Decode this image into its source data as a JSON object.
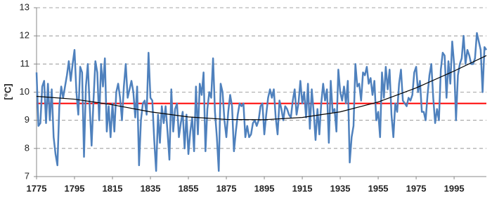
{
  "chart_data": {
    "type": "line",
    "y_label": "[°C]",
    "xlim": [
      1775,
      2012
    ],
    "ylim": [
      7,
      13
    ],
    "xticks": [
      1775,
      1795,
      1815,
      1835,
      1855,
      1875,
      1895,
      1915,
      1935,
      1955,
      1975,
      1995
    ],
    "yticks": [
      7,
      8,
      9,
      10,
      11,
      12,
      13
    ],
    "grid": true,
    "x": [
      1775,
      1776,
      1777,
      1778,
      1779,
      1780,
      1781,
      1782,
      1783,
      1784,
      1785,
      1786,
      1787,
      1788,
      1789,
      1790,
      1791,
      1792,
      1793,
      1794,
      1795,
      1796,
      1797,
      1798,
      1799,
      1800,
      1801,
      1802,
      1803,
      1804,
      1805,
      1806,
      1807,
      1808,
      1809,
      1810,
      1811,
      1812,
      1813,
      1814,
      1815,
      1816,
      1817,
      1818,
      1819,
      1820,
      1821,
      1822,
      1823,
      1824,
      1825,
      1826,
      1827,
      1828,
      1829,
      1830,
      1831,
      1832,
      1833,
      1834,
      1835,
      1836,
      1837,
      1838,
      1839,
      1840,
      1841,
      1842,
      1843,
      1844,
      1845,
      1846,
      1847,
      1848,
      1849,
      1850,
      1851,
      1852,
      1853,
      1854,
      1855,
      1856,
      1857,
      1858,
      1859,
      1860,
      1861,
      1862,
      1863,
      1864,
      1865,
      1866,
      1867,
      1868,
      1869,
      1870,
      1871,
      1872,
      1873,
      1874,
      1875,
      1876,
      1877,
      1878,
      1879,
      1880,
      1881,
      1882,
      1883,
      1884,
      1885,
      1886,
      1887,
      1888,
      1889,
      1890,
      1891,
      1892,
      1893,
      1894,
      1895,
      1896,
      1897,
      1898,
      1899,
      1900,
      1901,
      1902,
      1903,
      1904,
      1905,
      1906,
      1907,
      1908,
      1909,
      1910,
      1911,
      1912,
      1913,
      1914,
      1915,
      1916,
      1917,
      1918,
      1919,
      1920,
      1921,
      1922,
      1923,
      1924,
      1925,
      1926,
      1927,
      1928,
      1929,
      1930,
      1931,
      1932,
      1933,
      1934,
      1935,
      1936,
      1937,
      1938,
      1939,
      1940,
      1941,
      1942,
      1943,
      1944,
      1945,
      1946,
      1947,
      1948,
      1949,
      1950,
      1951,
      1952,
      1953,
      1954,
      1955,
      1956,
      1957,
      1958,
      1959,
      1960,
      1961,
      1962,
      1963,
      1964,
      1965,
      1966,
      1967,
      1968,
      1969,
      1970,
      1971,
      1972,
      1973,
      1974,
      1975,
      1976,
      1977,
      1978,
      1979,
      1980,
      1981,
      1982,
      1983,
      1984,
      1985,
      1986,
      1987,
      1988,
      1989,
      1990,
      1991,
      1992,
      1993,
      1994,
      1995,
      1996,
      1997,
      1998,
      1999,
      2000,
      2001,
      2002,
      2003,
      2004,
      2005,
      2006,
      2007,
      2008,
      2009,
      2010,
      2011,
      2012
    ],
    "series": [
      {
        "color": "#4f81bd",
        "values": [
          10.7,
          8.8,
          8.9,
          10.2,
          10.4,
          8.9,
          10.3,
          9.0,
          10.1,
          8.4,
          7.8,
          7.4,
          9.5,
          10.2,
          9.8,
          10.2,
          10.6,
          11.1,
          10.4,
          11.0,
          11.5,
          10.0,
          9.2,
          10.9,
          10.7,
          7.7,
          10.2,
          11.0,
          9.5,
          8.1,
          9.7,
          11.1,
          10.7,
          9.0,
          11.0,
          10.2,
          11.2,
          8.6,
          9.5,
          8.4,
          9.6,
          8.6,
          10.0,
          10.3,
          9.8,
          9.0,
          10.2,
          11.0,
          9.8,
          10.1,
          10.4,
          10.0,
          9.1,
          10.2,
          7.4,
          9.0,
          9.6,
          9.7,
          9.2,
          11.4,
          9.8,
          9.7,
          8.3,
          7.2,
          9.2,
          8.2,
          9.5,
          8.9,
          9.5,
          8.6,
          7.6,
          10.1,
          8.6,
          9.4,
          9.6,
          8.4,
          8.9,
          9.3,
          8.0,
          9.2,
          7.8,
          8.6,
          9.1,
          7.9,
          10.2,
          8.5,
          10.3,
          9.9,
          10.7,
          7.9,
          9.4,
          10.0,
          9.8,
          11.2,
          9.3,
          8.4,
          7.2,
          10.3,
          10.0,
          9.0,
          8.4,
          9.3,
          9.9,
          9.5,
          7.9,
          8.6,
          9.2,
          9.6,
          9.5,
          9.6,
          8.4,
          8.8,
          8.4,
          8.5,
          8.9,
          9.0,
          8.8,
          9.0,
          9.5,
          9.6,
          8.5,
          9.2,
          9.8,
          10.1,
          9.8,
          10.1,
          9.1,
          8.5,
          9.7,
          9.4,
          9.0,
          9.5,
          9.4,
          9.2,
          9.1,
          9.7,
          10.1,
          9.2,
          9.6,
          10.4,
          9.6,
          10.0,
          9.1,
          10.3,
          8.7,
          10.1,
          9.3,
          8.3,
          9.4,
          8.5,
          9.6,
          10.3,
          9.7,
          10.1,
          8.2,
          10.4,
          9.3,
          9.4,
          8.6,
          10.8,
          10.0,
          9.7,
          10.2,
          9.6,
          10.4,
          7.5,
          8.4,
          8.8,
          11.0,
          10.2,
          10.3,
          9.7,
          10.7,
          10.6,
          10.9,
          10.3,
          10.5,
          9.9,
          10.4,
          9.0,
          9.3,
          8.4,
          10.7,
          9.8,
          10.9,
          10.1,
          10.8,
          9.2,
          8.4,
          9.6,
          9.3,
          10.3,
          10.8,
          9.7,
          9.6,
          9.5,
          9.8,
          9.7,
          9.9,
          10.7,
          10.9,
          10.0,
          10.4,
          9.3,
          9.3,
          9.0,
          9.9,
          10.6,
          11.0,
          9.8,
          8.9,
          9.4,
          9.0,
          10.8,
          11.4,
          11.3,
          9.8,
          11.1,
          10.3,
          11.8,
          11.0,
          9.0,
          10.6,
          11.0,
          11.2,
          12.0,
          11.0,
          11.5,
          11.3,
          11.0,
          11.0,
          11.2,
          12.1,
          11.8,
          11.5,
          10.0,
          11.6,
          11.5
        ]
      }
    ],
    "mean_line": {
      "value": 9.6,
      "color": "#ff0000"
    },
    "trend": {
      "color": "#000000",
      "x": [
        1775,
        1795,
        1815,
        1835,
        1855,
        1875,
        1895,
        1915,
        1935,
        1955,
        1975,
        1995,
        2012
      ],
      "values": [
        9.85,
        9.75,
        9.55,
        9.3,
        9.12,
        9.03,
        9.02,
        9.1,
        9.3,
        9.65,
        10.15,
        10.75,
        11.3
      ]
    }
  }
}
